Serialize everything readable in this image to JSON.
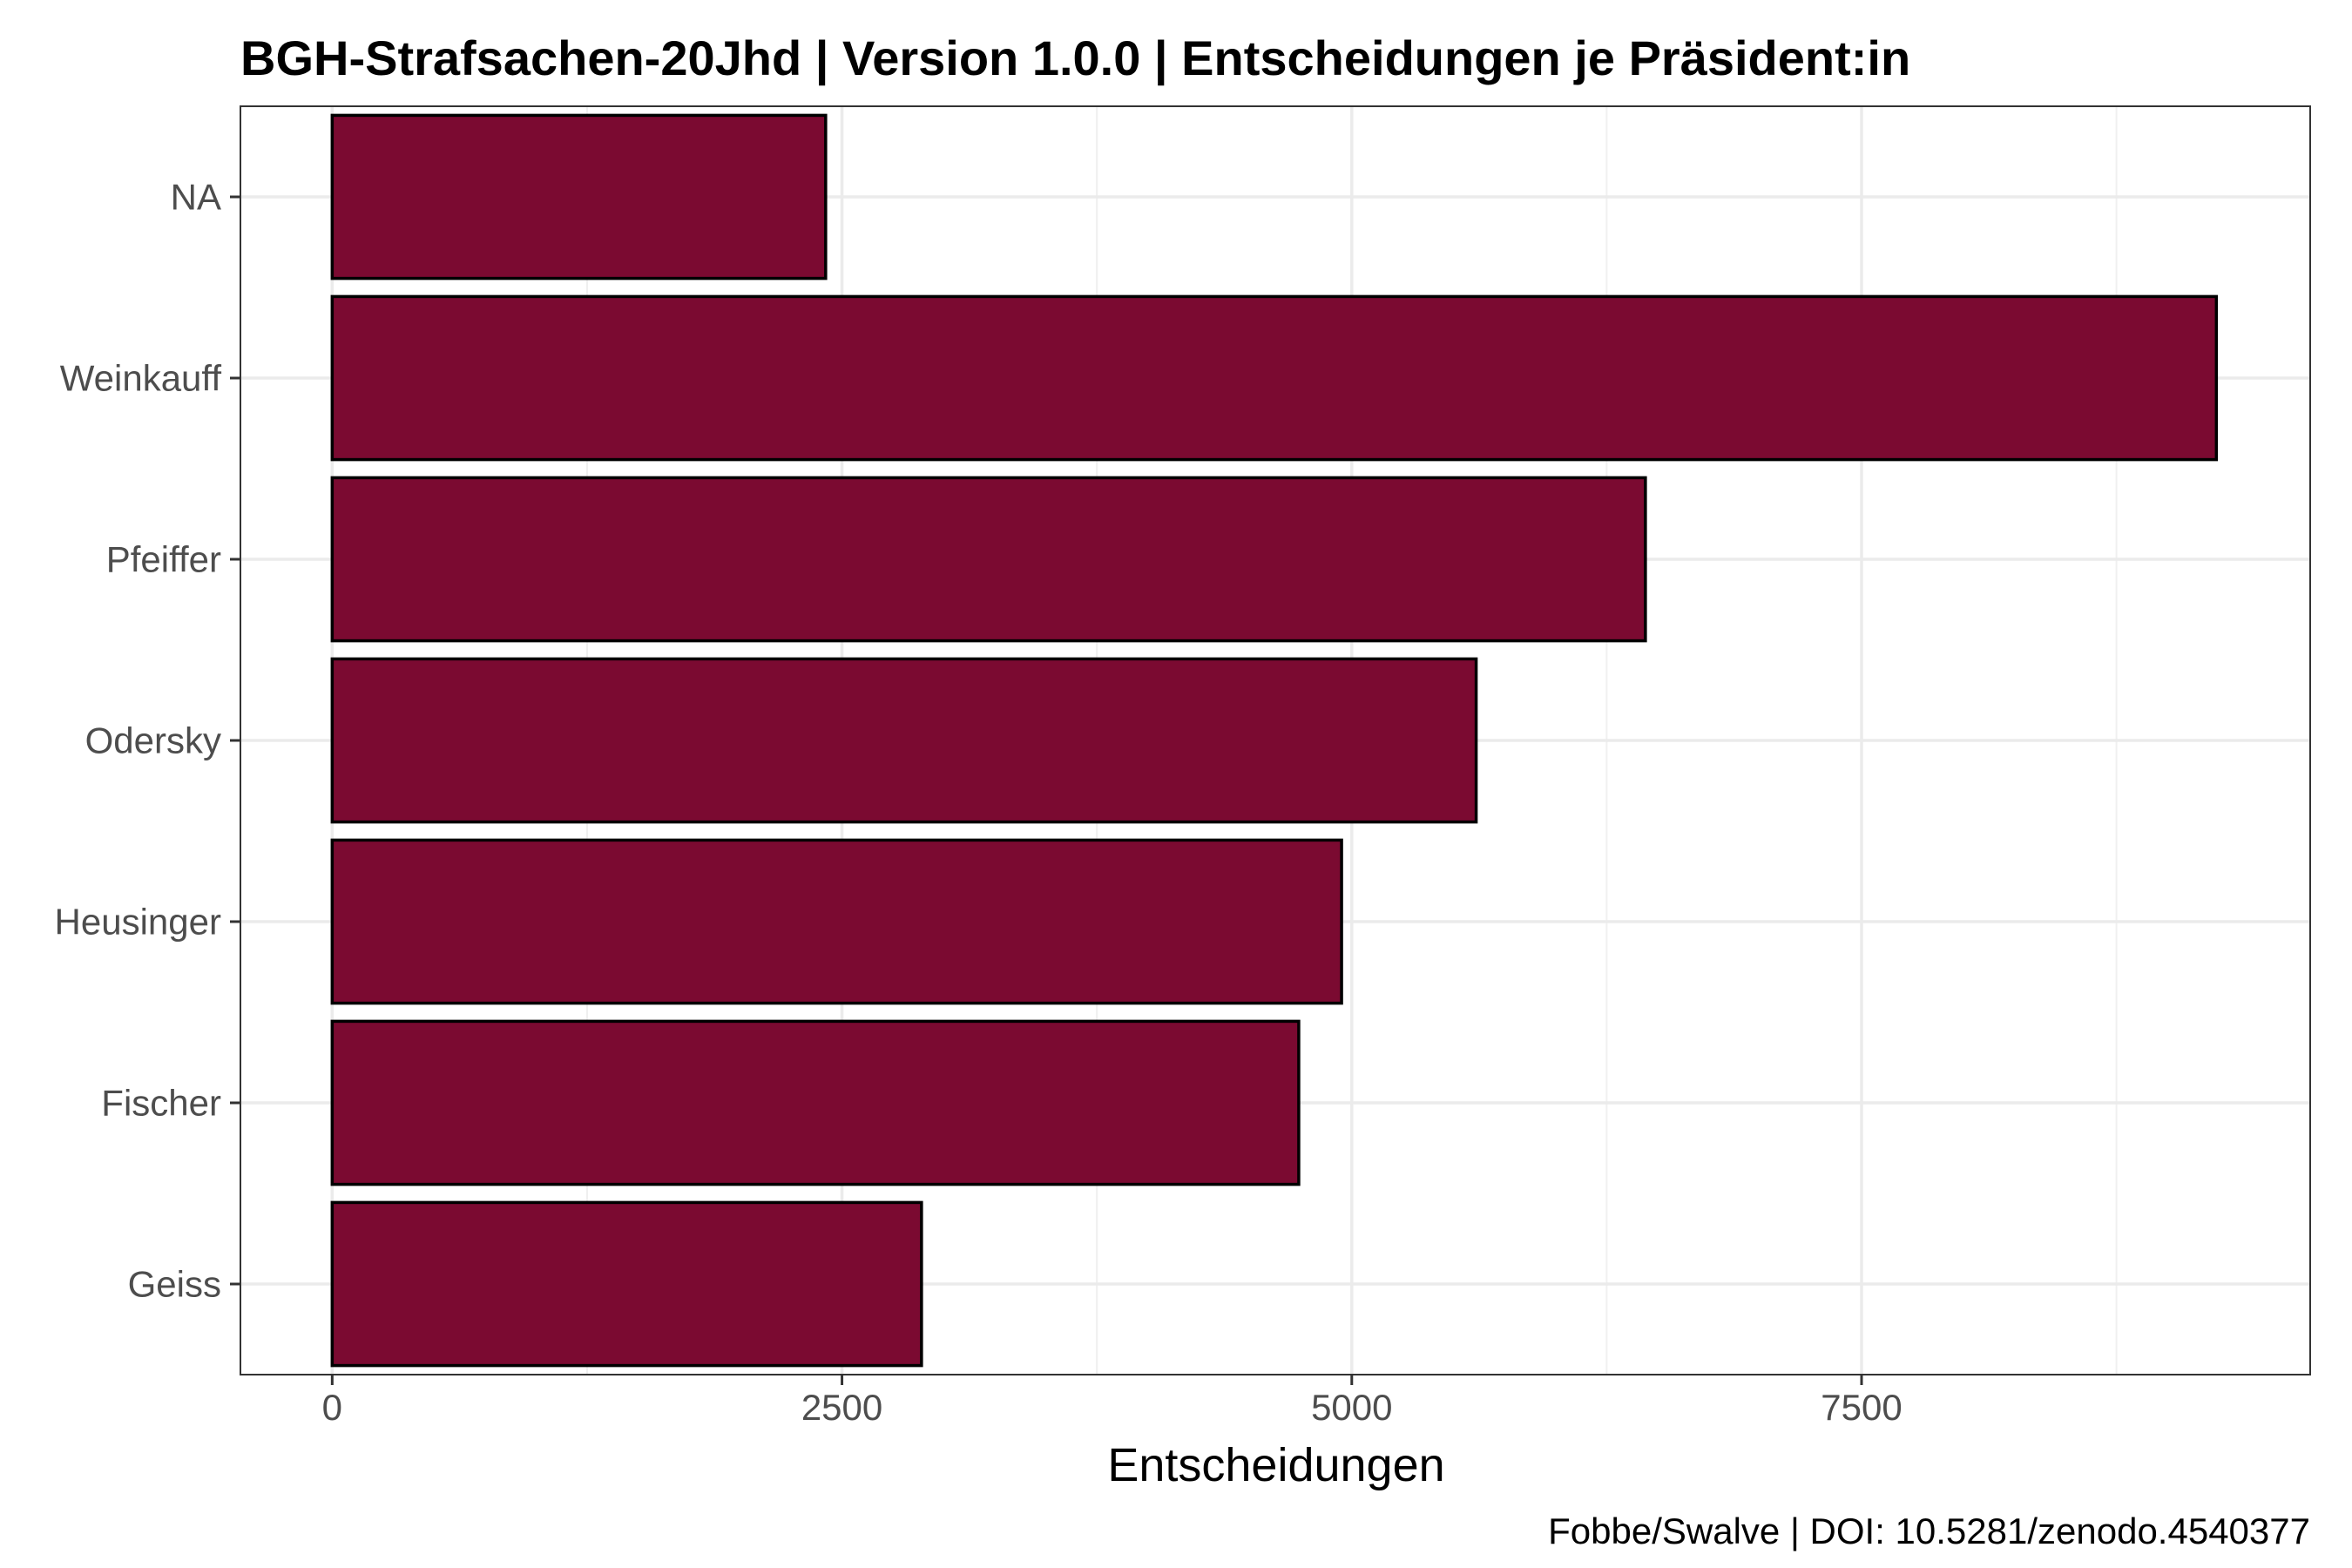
{
  "chart_data": {
    "type": "bar",
    "orientation": "horizontal",
    "title": "BGH-Strafsachen-20Jhd | Version 1.0.0 | Entscheidungen je Präsident:in",
    "xlabel": "Entscheidungen",
    "ylabel": "",
    "caption": "Fobbe/Swalve | DOI: 10.5281/zenodo.4540377",
    "categories": [
      "NA",
      "Weinkauff",
      "Pfeiffer",
      "Odersky",
      "Heusinger",
      "Fischer",
      "Geiss"
    ],
    "values": [
      2420,
      9240,
      6440,
      5610,
      4950,
      4740,
      2890
    ],
    "xlim": [
      -450,
      9700
    ],
    "x_ticks": [
      0,
      2500,
      5000,
      7500
    ],
    "x_tick_labels": [
      "0",
      "2500",
      "5000",
      "7500"
    ],
    "bar_color": "#7b0a31",
    "bar_border_color": "#000000",
    "grid": true,
    "legend": "none"
  }
}
